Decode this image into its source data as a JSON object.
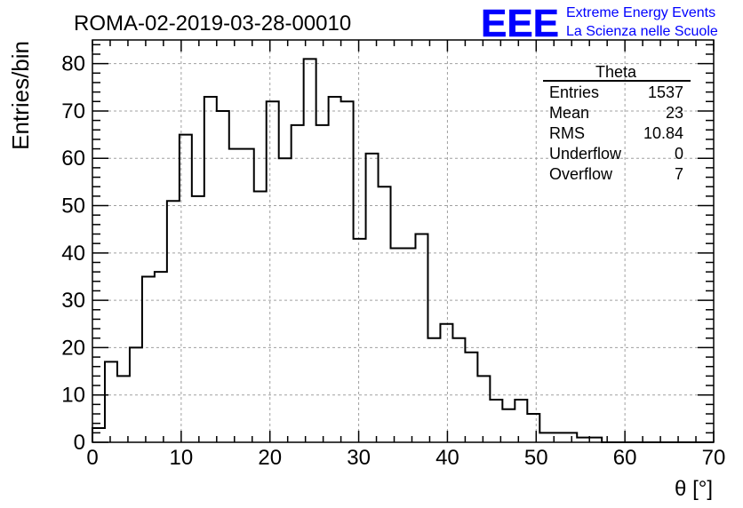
{
  "header": {
    "run_title": "ROMA-02-2019-03-28-00010",
    "logo_text": "EEE",
    "project_line1": "Extreme Energy Events",
    "project_line2": "La Scienza nelle Scuole",
    "brand_color": "#0000ff"
  },
  "chart_data": {
    "type": "bar",
    "histogram": true,
    "xlabel": "θ [°]",
    "ylabel": "Entries/bin",
    "xlim": [
      0,
      70
    ],
    "ylim": [
      0,
      85
    ],
    "grid": true,
    "bin_width": 1.4,
    "x_ticks": [
      0,
      10,
      20,
      30,
      40,
      50,
      60,
      70
    ],
    "y_ticks": [
      0,
      10,
      20,
      30,
      40,
      50,
      60,
      70,
      80
    ],
    "bin_edges": [
      0,
      1.4,
      2.8,
      4.2,
      5.6,
      7.0,
      8.4,
      9.8,
      11.2,
      12.6,
      14.0,
      15.4,
      16.8,
      18.2,
      19.6,
      21.0,
      22.4,
      23.8,
      25.2,
      26.6,
      28.0,
      29.4,
      30.8,
      32.2,
      33.6,
      35.0,
      36.4,
      37.8,
      39.2,
      40.6,
      42.0,
      43.4,
      44.8,
      46.2,
      47.6,
      49.0,
      50.4,
      51.8,
      53.2,
      54.6,
      56.0,
      57.4,
      58.8,
      60.2,
      61.6,
      63.0,
      64.4,
      65.8,
      67.2,
      68.6,
      70.0
    ],
    "values": [
      3,
      17,
      14,
      20,
      35,
      36,
      51,
      65,
      52,
      73,
      70,
      62,
      62,
      53,
      72,
      60,
      67,
      81,
      67,
      73,
      72,
      43,
      61,
      54,
      41,
      41,
      44,
      22,
      25,
      22,
      19,
      14,
      9,
      7,
      9,
      6,
      2,
      2,
      2,
      1,
      1,
      0,
      0,
      0,
      0,
      0,
      0,
      0,
      0,
      0
    ],
    "line_color": "#000000",
    "stats_box": {
      "title": "Theta",
      "rows": [
        {
          "label": "Entries",
          "value": "1537"
        },
        {
          "label": "Mean",
          "value": "23"
        },
        {
          "label": "RMS",
          "value": "10.84"
        },
        {
          "label": "Underflow",
          "value": "0"
        },
        {
          "label": "Overflow",
          "value": "7"
        }
      ]
    }
  }
}
